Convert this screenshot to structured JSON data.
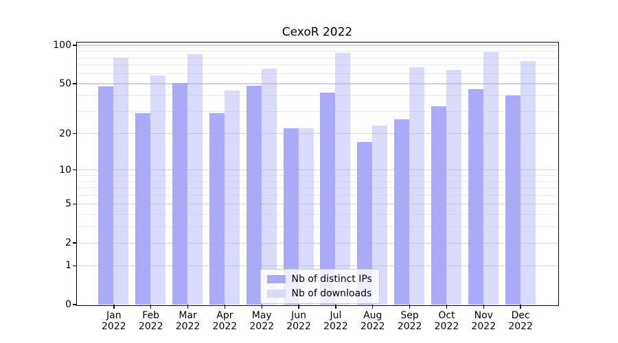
{
  "chart_data": {
    "type": "bar",
    "title": "CexoR 2022",
    "categories": [
      "Jan 2022",
      "Feb 2022",
      "Mar 2022",
      "Apr 2022",
      "May 2022",
      "Jun 2022",
      "Jul 2022",
      "Aug 2022",
      "Sep 2022",
      "Oct 2022",
      "Nov 2022",
      "Dec 2022"
    ],
    "series": [
      {
        "name": "Nb of distinct IPs",
        "color": "#aaaaf8",
        "values": [
          47,
          29,
          50,
          29,
          48,
          22,
          42,
          17,
          26,
          33,
          45,
          40
        ]
      },
      {
        "name": "Nb of downloads",
        "color": "#dadafa",
        "values": [
          80,
          58,
          85,
          44,
          65,
          22,
          87,
          23,
          67,
          64,
          88,
          75
        ]
      }
    ],
    "yscale": "log1p",
    "ylim": [
      0,
      105
    ],
    "yticks_major": [
      0,
      1,
      2,
      5,
      10,
      20,
      50,
      100
    ],
    "yticks_minor": [
      3,
      4,
      6,
      7,
      8,
      9,
      30,
      40,
      60,
      70,
      80,
      90
    ],
    "xlabel": "",
    "ylabel": "",
    "grid": "both",
    "legend_position": "lower center",
    "colors": {
      "grid": "#b0b0b0",
      "spine": "#000000",
      "background": "#ffffff"
    }
  }
}
